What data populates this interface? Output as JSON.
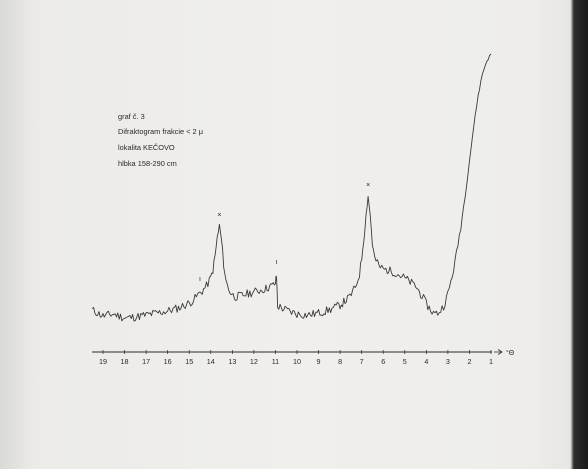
{
  "chart_data": {
    "type": "line",
    "annotation_lines": [
      "graf č. 3",
      "Difraktogram frakcie < 2  μ",
      "lokalita  KEČOVO",
      "hlbka  158-290 cm"
    ],
    "xlabel": "°Θ",
    "x_ticks": [
      19,
      18,
      17,
      16,
      15,
      14,
      13,
      12,
      11,
      10,
      9,
      8,
      7,
      6,
      5,
      4,
      3,
      2,
      1
    ],
    "xlim": [
      19.5,
      0.8
    ],
    "x_direction": "decreasing to the right",
    "y_axis_visible": false,
    "grid": false,
    "peak_markers": [
      {
        "x": 13.6,
        "symbol": "×"
      },
      {
        "x": 6.7,
        "symbol": "×"
      }
    ],
    "minor_markers": [
      {
        "x": 14.5,
        "symbol": "ı"
      },
      {
        "x": 10.95,
        "symbol": "ı"
      }
    ],
    "series": [
      {
        "x": [
          19.5,
          19.0,
          18.5,
          18.0,
          17.5,
          17.0,
          16.5,
          16.0,
          15.5,
          15.0,
          14.8,
          14.6,
          14.4,
          14.2,
          14.0,
          13.9,
          13.8,
          13.7,
          13.6,
          13.5,
          13.4,
          13.3,
          13.1,
          12.9,
          12.5,
          12.0,
          11.5,
          11.1,
          11.0,
          10.95,
          10.9,
          10.5,
          10.0,
          9.5,
          9.0,
          8.5,
          8.0,
          7.6,
          7.3,
          7.1,
          7.0,
          6.9,
          6.8,
          6.7,
          6.6,
          6.5,
          6.4,
          6.2,
          6.0,
          5.5,
          5.0,
          4.5,
          4.2,
          4.0,
          3.8,
          3.6,
          3.4,
          3.2,
          3.0,
          2.8,
          2.6,
          2.4,
          2.2,
          2.0,
          1.8,
          1.6,
          1.4,
          1.2,
          1.0
        ],
        "y": [
          26,
          20,
          22,
          18,
          19,
          21,
          23,
          25,
          28,
          33,
          36,
          41,
          45,
          50,
          58,
          66,
          80,
          98,
          110,
          95,
          72,
          55,
          44,
          39,
          41,
          44,
          47,
          51,
          53,
          60,
          30,
          26,
          22,
          21,
          23,
          26,
          31,
          38,
          48,
          62,
          78,
          98,
          120,
          140,
          120,
          92,
          78,
          70,
          67,
          64,
          58,
          50,
          40,
          32,
          26,
          22,
          24,
          30,
          42,
          60,
          82,
          110,
          140,
          175,
          210,
          240,
          262,
          275,
          282
        ]
      }
    ]
  }
}
